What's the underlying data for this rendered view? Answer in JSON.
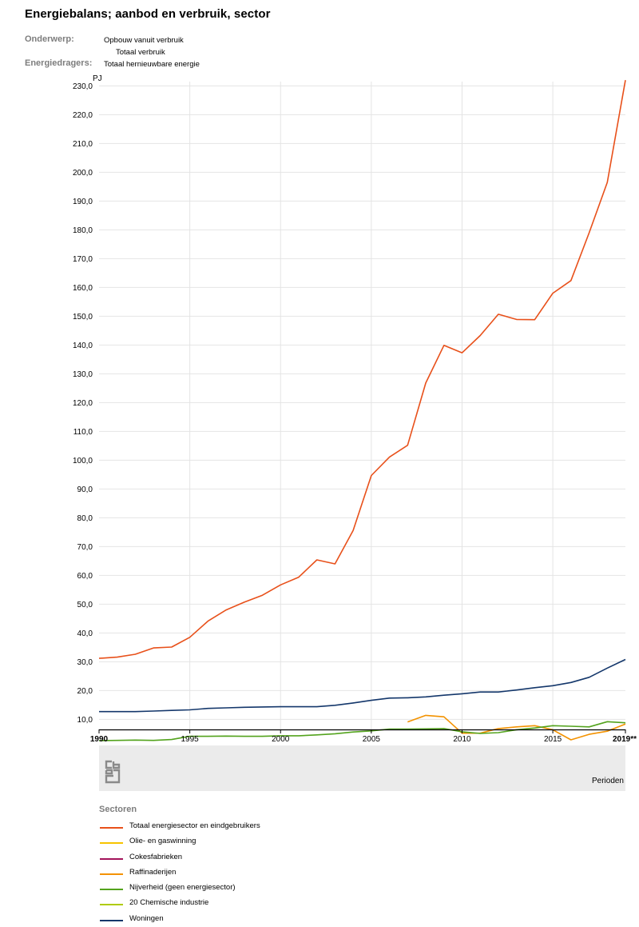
{
  "title": "Energiebalans; aanbod en verbruik, sector",
  "meta": {
    "onderwerp_label": "Onderwerp:",
    "onderwerp_value_1": "Opbouw vanuit verbruik",
    "onderwerp_value_2": "Totaal verbruik",
    "energiedragers_label": "Energiedragers:",
    "energiedragers_value": "Totaal hernieuwbare energie"
  },
  "footer": {
    "perioden": "Perioden"
  },
  "legend_title": "Sectoren",
  "colors": {
    "grid": "#e4e4e4",
    "axis": "#000000",
    "band": "#ebebeb"
  },
  "chart_data": {
    "type": "line",
    "ylabel": "PJ",
    "xlabel": "Perioden",
    "ylim": [
      6.5,
      231.5
    ],
    "y_ticks": [
      10,
      20,
      30,
      40,
      50,
      60,
      70,
      80,
      90,
      100,
      110,
      120,
      130,
      140,
      150,
      160,
      170,
      180,
      190,
      200,
      210,
      220,
      230
    ],
    "y_tick_labels": [
      "10,0",
      "20,0",
      "30,0",
      "40,0",
      "50,0",
      "60,0",
      "70,0",
      "80,0",
      "90,0",
      "100,0",
      "110,0",
      "120,0",
      "130,0",
      "140,0",
      "150,0",
      "160,0",
      "170,0",
      "180,0",
      "190,0",
      "200,0",
      "210,0",
      "220,0",
      "230,0"
    ],
    "x_ticks": [
      1990,
      1995,
      2000,
      2005,
      2010,
      2015,
      2019
    ],
    "x_tick_labels": [
      "1990",
      "1995",
      "2000",
      "2005",
      "2010",
      "2015",
      "2019**"
    ],
    "xlim": [
      1990,
      2019
    ],
    "grid": true,
    "legend_position": "bottom",
    "series": [
      {
        "name": "Totaal energiesector en eindgebruikers",
        "color": "#e8501a",
        "x": [
          1990,
          1991,
          1992,
          1993,
          1994,
          1995,
          1996,
          1997,
          1998,
          1999,
          2000,
          2001,
          2002,
          2003,
          2004,
          2005,
          2006,
          2007,
          2008,
          2009,
          2010,
          2011,
          2012,
          2013,
          2014,
          2015,
          2016,
          2017,
          2018,
          2019
        ],
        "values": [
          31.2,
          31.6,
          32.6,
          34.8,
          35.1,
          38.5,
          44.1,
          48.0,
          50.7,
          53.1,
          56.7,
          59.4,
          65.4,
          64.0,
          75.6,
          94.7,
          101.1,
          105.2,
          126.8,
          139.9,
          137.3,
          143.3,
          150.7,
          148.9,
          148.8,
          158.0,
          162.4,
          179.0,
          196.5,
          232.0
        ]
      },
      {
        "name": "Olie- en gaswinning",
        "color": "#f7c400",
        "x": [],
        "values": []
      },
      {
        "name": "Cokesfabrieken",
        "color": "#a3145b",
        "x": [],
        "values": []
      },
      {
        "name": "Raffinaderijen",
        "color": "#f39200",
        "x": [
          2007,
          2008,
          2009,
          2010,
          2011,
          2012,
          2013,
          2014,
          2015,
          2016,
          2017,
          2018,
          2019
        ],
        "values": [
          9.1,
          11.4,
          10.9,
          5.2,
          5.2,
          6.8,
          7.4,
          7.8,
          6.4,
          2.9,
          4.8,
          5.9,
          8.4
        ]
      },
      {
        "name": "Nijverheid (geen energiesector)",
        "color": "#53a31d",
        "x": [
          1990,
          1991,
          1992,
          1993,
          1994,
          1995,
          1996,
          1997,
          1998,
          1999,
          2000,
          2001,
          2002,
          2003,
          2004,
          2005,
          2006,
          2007,
          2008,
          2009,
          2010,
          2011,
          2012,
          2013,
          2014,
          2015,
          2016,
          2017,
          2018,
          2019
        ],
        "values": [
          2.6,
          2.7,
          2.8,
          2.7,
          3.0,
          4.1,
          4.1,
          4.2,
          4.1,
          4.1,
          4.3,
          4.3,
          4.6,
          5.0,
          5.6,
          6.0,
          6.6,
          6.6,
          6.7,
          6.8,
          5.7,
          5.1,
          5.4,
          6.4,
          7.0,
          7.8,
          7.6,
          7.4,
          9.2,
          8.8
        ]
      },
      {
        "name": "20 Chemische industrie",
        "color": "#afcb05",
        "x": [],
        "values": []
      },
      {
        "name": "Woningen",
        "color": "#14376b",
        "x": [
          1990,
          1991,
          1992,
          1993,
          1994,
          1995,
          1996,
          1997,
          1998,
          1999,
          2000,
          2001,
          2002,
          2003,
          2004,
          2005,
          2006,
          2007,
          2008,
          2009,
          2010,
          2011,
          2012,
          2013,
          2014,
          2015,
          2016,
          2017,
          2018,
          2019
        ],
        "values": [
          12.7,
          12.7,
          12.7,
          12.9,
          13.1,
          13.3,
          13.8,
          14.0,
          14.2,
          14.3,
          14.4,
          14.4,
          14.4,
          14.9,
          15.7,
          16.6,
          17.4,
          17.5,
          17.8,
          18.4,
          18.9,
          19.5,
          19.5,
          20.2,
          21.0,
          21.7,
          22.8,
          24.6,
          27.8,
          30.8
        ]
      }
    ]
  }
}
